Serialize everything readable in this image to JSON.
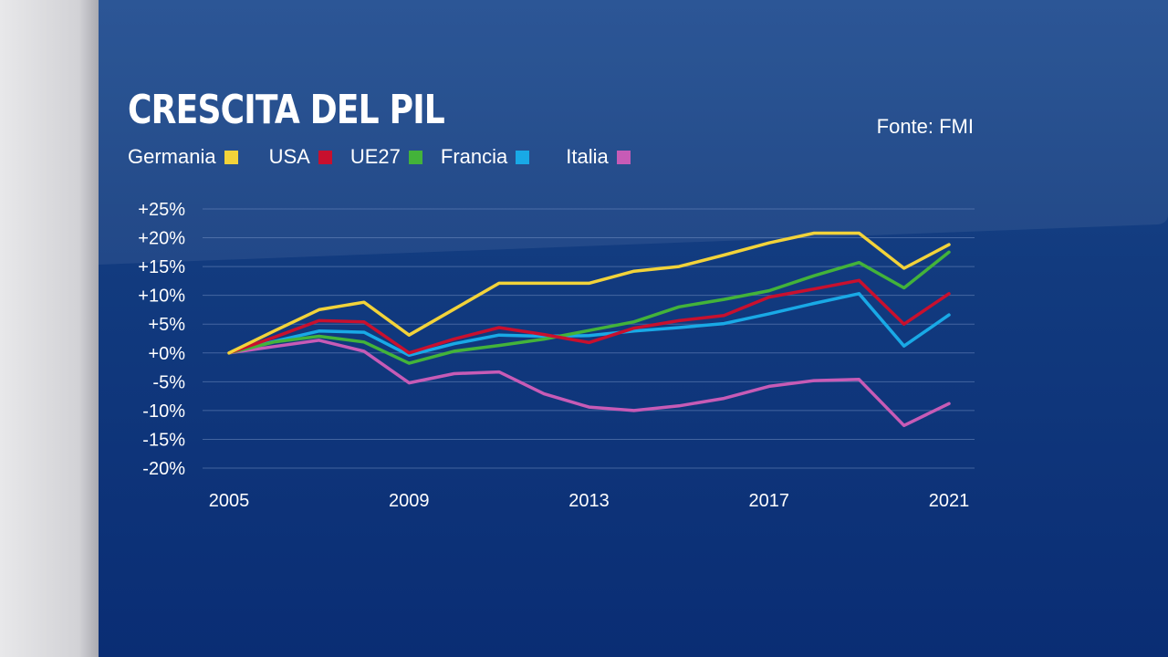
{
  "title": "CRESCITA DEL PIL",
  "source": "Fonte: FMI",
  "chart_data": {
    "type": "line",
    "title": "CRESCITA DEL PIL",
    "xlabel": "",
    "ylabel": "",
    "x": [
      2005,
      2006,
      2007,
      2008,
      2009,
      2010,
      2011,
      2012,
      2013,
      2014,
      2015,
      2016,
      2017,
      2018,
      2019,
      2020,
      2021
    ],
    "xlim": [
      2005,
      2021
    ],
    "ylim": [
      -20,
      25
    ],
    "x_ticks": [
      2005,
      2009,
      2013,
      2017,
      2021
    ],
    "x_tick_labels": [
      "2005",
      "2009",
      "2013",
      "2017",
      "2021"
    ],
    "y_ticks": [
      25,
      20,
      15,
      10,
      5,
      0,
      -5,
      -10,
      -15,
      -20
    ],
    "y_tick_labels": [
      "+25%",
      "+20%",
      "+15%",
      "+10%",
      "+5%",
      "+0%",
      "-5%",
      "-10%",
      "-15%",
      "-20%"
    ],
    "grid": true,
    "legend_position": "top-left",
    "series": [
      {
        "name": "Germania",
        "color": "#f2d33a",
        "values": [
          0,
          3.8,
          7.5,
          8.8,
          3.1,
          7.6,
          12.1,
          12.1,
          12.1,
          14.2,
          15.0,
          17.0,
          19.1,
          20.8,
          20.8,
          14.7,
          18.8
        ]
      },
      {
        "name": "USA",
        "color": "#c8102e",
        "values": [
          0,
          2.7,
          5.6,
          5.4,
          0.0,
          2.4,
          4.4,
          3.2,
          1.8,
          4.3,
          5.6,
          6.5,
          9.7,
          11.1,
          12.6,
          5.0,
          10.3
        ]
      },
      {
        "name": "UE27",
        "color": "#43b33a",
        "values": [
          0,
          1.9,
          2.9,
          1.9,
          -1.8,
          0.3,
          1.3,
          2.4,
          3.9,
          5.4,
          8.0,
          9.3,
          10.8,
          13.4,
          15.7,
          11.3,
          17.5
        ]
      },
      {
        "name": "Francia",
        "color": "#19a9e6",
        "values": [
          0,
          2.0,
          3.8,
          3.6,
          -0.4,
          1.6,
          3.1,
          2.9,
          3.0,
          3.8,
          4.4,
          5.1,
          6.8,
          8.6,
          10.3,
          1.2,
          6.6
        ]
      },
      {
        "name": "Italia",
        "color": "#c75bb6",
        "values": [
          0,
          1.1,
          2.2,
          0.3,
          -5.2,
          -3.6,
          -3.3,
          -7.1,
          -9.4,
          -10.0,
          -9.2,
          -7.9,
          -5.8,
          -4.8,
          -4.6,
          -12.6,
          -8.8
        ]
      }
    ]
  }
}
